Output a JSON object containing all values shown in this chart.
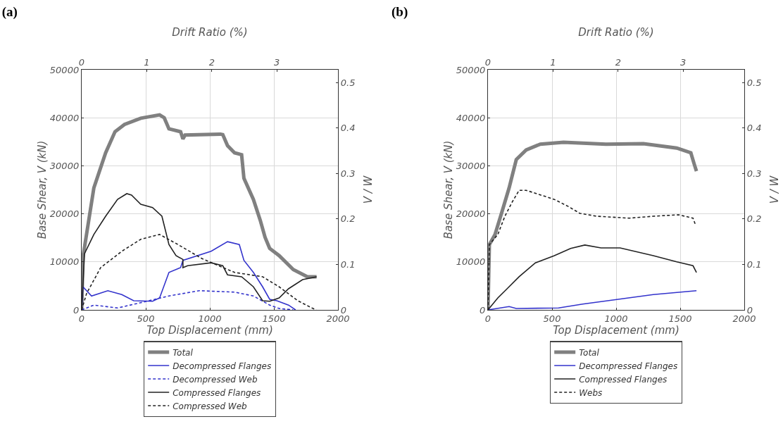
{
  "chart_data": [
    {
      "type": "line",
      "title": "(a)",
      "xlabel": "Top Displacement (mm)",
      "ylabel": "Base Shear, V (kN)",
      "x2label": "Drift Ratio (%)",
      "y2label": "V / W",
      "xlim": [
        0,
        2000
      ],
      "xticks": [
        0,
        500,
        1000,
        1500,
        2000
      ],
      "ylim": [
        0,
        50000
      ],
      "yticks": [
        0,
        10000,
        20000,
        30000,
        40000,
        50000
      ],
      "x2lim": [
        0,
        3.94
      ],
      "x2ticks": [
        0,
        1,
        2,
        3
      ],
      "y2lim": [
        0,
        0.528
      ],
      "y2ticks": [
        0,
        0.1,
        0.2,
        0.3,
        0.4,
        0.5
      ],
      "grid": true,
      "legend": "bottom",
      "marker": "none",
      "series": [
        {
          "name": "Total",
          "color": "#808080",
          "line_style": "solid",
          "x": [
            0,
            10,
            95,
            187,
            260,
            334,
            461,
            608,
            644,
            681,
            772,
            790,
            807,
            1083,
            1101,
            1138,
            1193,
            1248,
            1266,
            1340,
            1394,
            1431,
            1467,
            1541,
            1651,
            1761,
            1833
          ],
          "values": [
            0,
            11000,
            25400,
            32700,
            37100,
            38600,
            39900,
            40600,
            40000,
            37700,
            37100,
            35600,
            36400,
            36600,
            36500,
            34200,
            32700,
            32300,
            27400,
            23000,
            18600,
            15100,
            12800,
            11300,
            8400,
            6900,
            6900
          ]
        },
        {
          "name": "Decompressed Flanges",
          "color": "#3333cc",
          "line_style": "solid",
          "x": [
            0,
            10,
            77,
            204,
            313,
            406,
            553,
            608,
            681,
            772,
            790,
            1010,
            1138,
            1230,
            1266,
            1340,
            1412,
            1467,
            1523,
            1614,
            1669
          ],
          "values": [
            0,
            4800,
            2900,
            4000,
            3200,
            1900,
            1800,
            2500,
            7800,
            8800,
            10300,
            12200,
            14200,
            13600,
            10300,
            7800,
            4800,
            2200,
            1900,
            1000,
            0
          ]
        },
        {
          "name": "Decompressed Web",
          "color": "#3333cc",
          "line_style": "dashed",
          "x": [
            0,
            95,
            280,
            461,
            681,
            917,
            1193,
            1340,
            1467,
            1541,
            1650
          ],
          "values": [
            0,
            1000,
            400,
            1500,
            2900,
            4000,
            3700,
            2900,
            1000,
            300,
            0
          ]
        },
        {
          "name": "Compressed Flanges",
          "color": "#222222",
          "line_style": "solid",
          "x": [
            0,
            22,
            95,
            187,
            280,
            352,
            389,
            461,
            553,
            626,
            681,
            736,
            790,
            790,
            827,
            1010,
            1101,
            1138,
            1248,
            1340,
            1412,
            1467,
            1541,
            1614,
            1724,
            1833
          ],
          "values": [
            0,
            11700,
            15700,
            19500,
            23000,
            24200,
            23900,
            22000,
            21300,
            19500,
            13600,
            11300,
            10500,
            8800,
            9200,
            9800,
            9200,
            7300,
            6900,
            4800,
            1900,
            1800,
            2500,
            4400,
            6300,
            6900
          ]
        },
        {
          "name": "Compressed Web",
          "color": "#222222",
          "line_style": "dashed",
          "x": [
            0,
            38,
            148,
            313,
            461,
            608,
            752,
            937,
            1193,
            1412,
            1541,
            1687,
            1797,
            1830
          ],
          "values": [
            0,
            3400,
            8800,
            12200,
            14700,
            15700,
            13600,
            10700,
            7800,
            6900,
            4800,
            1900,
            400,
            0
          ]
        }
      ]
    },
    {
      "type": "line",
      "title": "(b)",
      "xlabel": "Top Displacement (mm)",
      "ylabel": "Base Shear, V (kN)",
      "x2label": "Drift Ratio (%)",
      "y2label": "V / W",
      "xlim": [
        0,
        2000
      ],
      "xticks": [
        0,
        500,
        1000,
        1500,
        2000
      ],
      "ylim": [
        0,
        50000
      ],
      "yticks": [
        0,
        10000,
        20000,
        30000,
        40000,
        50000
      ],
      "x2lim": [
        0,
        3.94
      ],
      "x2ticks": [
        0,
        1,
        2,
        3
      ],
      "y2lim": [
        0,
        0.528
      ],
      "y2ticks": [
        0,
        0.1,
        0.2,
        0.3,
        0.4,
        0.5
      ],
      "grid": true,
      "legend": "bottom",
      "marker": "none",
      "series": [
        {
          "name": "Total",
          "color": "#808080",
          "line_style": "solid",
          "x": [
            0,
            11,
            55,
            110,
            165,
            221,
            298,
            408,
            590,
            921,
            1213,
            1473,
            1583,
            1610,
            1627
          ],
          "values": [
            0,
            13600,
            15700,
            20500,
            25400,
            31300,
            33300,
            34500,
            34900,
            34500,
            34600,
            33700,
            32700,
            30300,
            28900
          ]
        },
        {
          "name": "Decompressed Flanges",
          "color": "#3333cc",
          "line_style": "solid",
          "x": [
            0,
            165,
            221,
            551,
            739,
            1015,
            1290,
            1627
          ],
          "values": [
            0,
            700,
            300,
            400,
            1200,
            2200,
            3200,
            4000
          ]
        },
        {
          "name": "Compressed Flanges",
          "color": "#222222",
          "line_style": "solid",
          "x": [
            0,
            77,
            149,
            243,
            370,
            518,
            645,
            756,
            882,
            1031,
            1290,
            1473,
            1600,
            1627
          ],
          "values": [
            0,
            2500,
            4400,
            6900,
            9800,
            11300,
            12800,
            13500,
            12900,
            12900,
            11300,
            10000,
            9200,
            7800
          ]
        },
        {
          "name": "Webs",
          "color": "#222222",
          "line_style": "dashed",
          "x": [
            0,
            11,
            77,
            132,
            188,
            243,
            298,
            518,
            629,
            717,
            849,
            1103,
            1290,
            1489,
            1600,
            1621
          ],
          "values": [
            0,
            13600,
            15700,
            19500,
            22400,
            24900,
            24900,
            23000,
            21500,
            20100,
            19500,
            19100,
            19500,
            19800,
            19100,
            17600
          ]
        }
      ]
    }
  ]
}
